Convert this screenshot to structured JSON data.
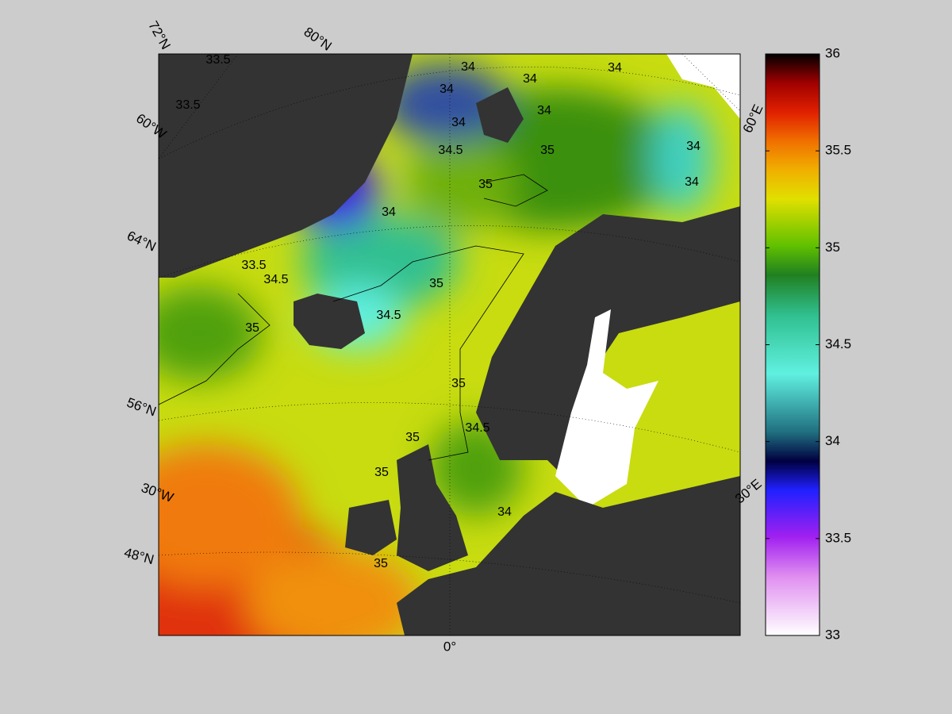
{
  "map": {
    "graticule_labels": [
      "72°N",
      "80°N",
      "60°W",
      "64°N",
      "56°N",
      "30°W",
      "48°N",
      "0°",
      "30°E",
      "60°E"
    ],
    "contour_labels": [
      33.5,
      33.5,
      34,
      34,
      34,
      34,
      34,
      34.5,
      34,
      35,
      34,
      34,
      34,
      33.5,
      34.5,
      35,
      34.5,
      35,
      35,
      35,
      34.5,
      35,
      35,
      34,
      35
    ]
  },
  "colorbar": {
    "lim": [
      33,
      36
    ],
    "ticks": [
      33,
      33.5,
      34,
      34.5,
      35,
      35.5,
      36
    ]
  }
}
